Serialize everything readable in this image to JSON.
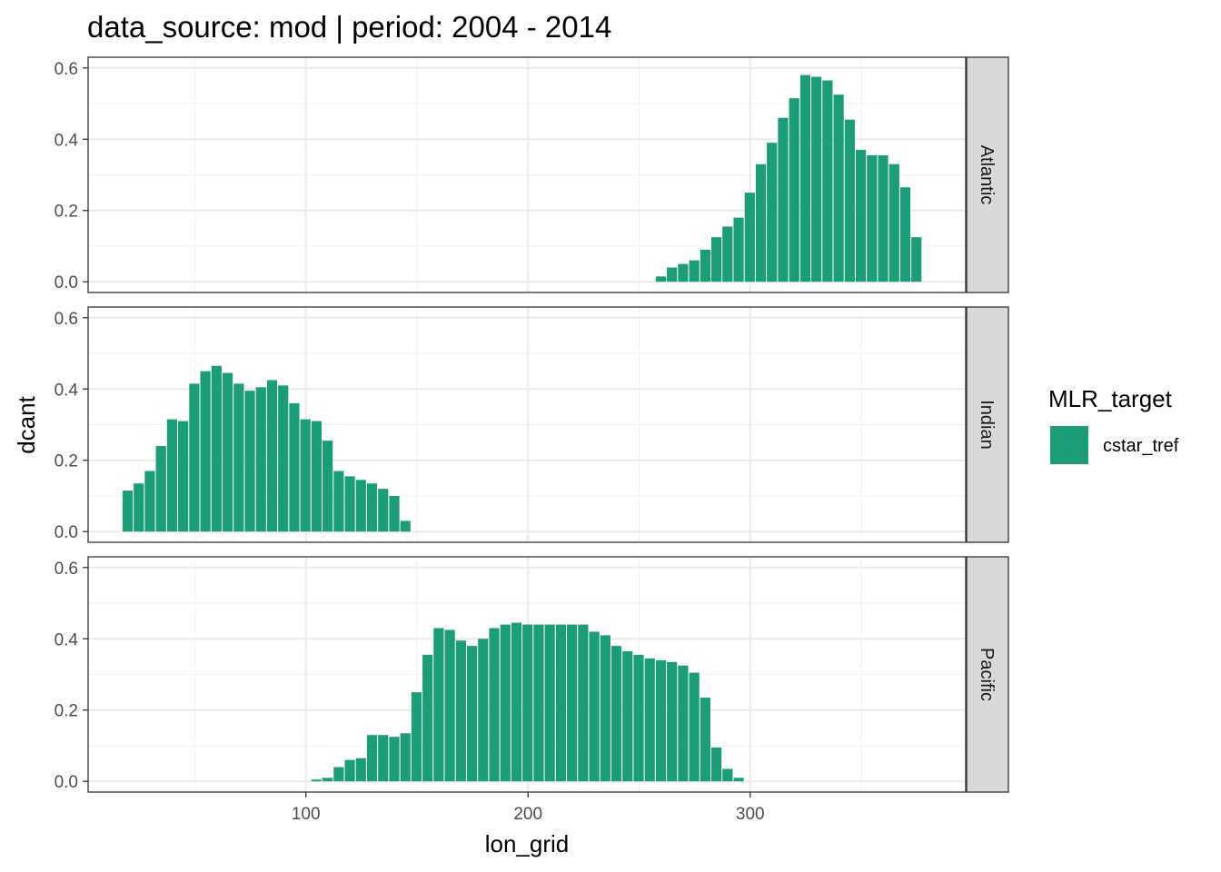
{
  "chart_data": {
    "type": "bar",
    "title": "data_source: mod | period: 2004 - 2014",
    "xlabel": "lon_grid",
    "ylabel": "dcant",
    "xlim": [
      2,
      397
    ],
    "ylim": [
      -0.03,
      0.63
    ],
    "x_ticks": [
      100,
      200,
      300
    ],
    "y_ticks": [
      0.0,
      0.2,
      0.4,
      0.6
    ],
    "y_tick_labels": [
      "0.0",
      "0.2",
      "0.4",
      "0.6"
    ],
    "bar_width": 5,
    "grid": true,
    "legend": {
      "title": "MLR_target",
      "position": "right",
      "entries": [
        {
          "label": "cstar_tref",
          "color": "#1b9e77"
        }
      ]
    },
    "facets": [
      {
        "label": "Atlantic",
        "x": [
          260,
          265,
          270,
          275,
          280,
          285,
          290,
          295,
          300,
          305,
          310,
          315,
          320,
          325,
          330,
          335,
          340,
          345,
          350,
          355,
          360,
          365,
          370,
          375
        ],
        "values": [
          0.015,
          0.04,
          0.05,
          0.06,
          0.09,
          0.125,
          0.155,
          0.18,
          0.25,
          0.33,
          0.39,
          0.46,
          0.515,
          0.58,
          0.575,
          0.565,
          0.525,
          0.455,
          0.37,
          0.355,
          0.355,
          0.33,
          0.265,
          0.125
        ]
      },
      {
        "label": "Indian",
        "x": [
          20,
          25,
          30,
          35,
          40,
          45,
          50,
          55,
          60,
          65,
          70,
          75,
          80,
          85,
          90,
          95,
          100,
          105,
          110,
          115,
          120,
          125,
          130,
          135,
          140,
          145
        ],
        "values": [
          0.115,
          0.135,
          0.17,
          0.24,
          0.315,
          0.31,
          0.415,
          0.45,
          0.465,
          0.445,
          0.415,
          0.395,
          0.405,
          0.425,
          0.41,
          0.36,
          0.315,
          0.31,
          0.255,
          0.17,
          0.155,
          0.145,
          0.135,
          0.12,
          0.1,
          0.03
        ]
      },
      {
        "label": "Pacific",
        "x": [
          105,
          110,
          115,
          120,
          125,
          130,
          135,
          140,
          145,
          150,
          155,
          160,
          165,
          170,
          175,
          180,
          185,
          190,
          195,
          200,
          205,
          210,
          215,
          220,
          225,
          230,
          235,
          240,
          245,
          250,
          255,
          260,
          265,
          270,
          275,
          280,
          285,
          290,
          295
        ],
        "values": [
          0.005,
          0.01,
          0.04,
          0.06,
          0.065,
          0.13,
          0.13,
          0.125,
          0.135,
          0.25,
          0.355,
          0.43,
          0.425,
          0.395,
          0.38,
          0.4,
          0.43,
          0.44,
          0.445,
          0.44,
          0.44,
          0.44,
          0.44,
          0.44,
          0.44,
          0.42,
          0.41,
          0.38,
          0.365,
          0.355,
          0.345,
          0.34,
          0.335,
          0.325,
          0.305,
          0.235,
          0.095,
          0.035,
          0.01
        ]
      }
    ]
  }
}
